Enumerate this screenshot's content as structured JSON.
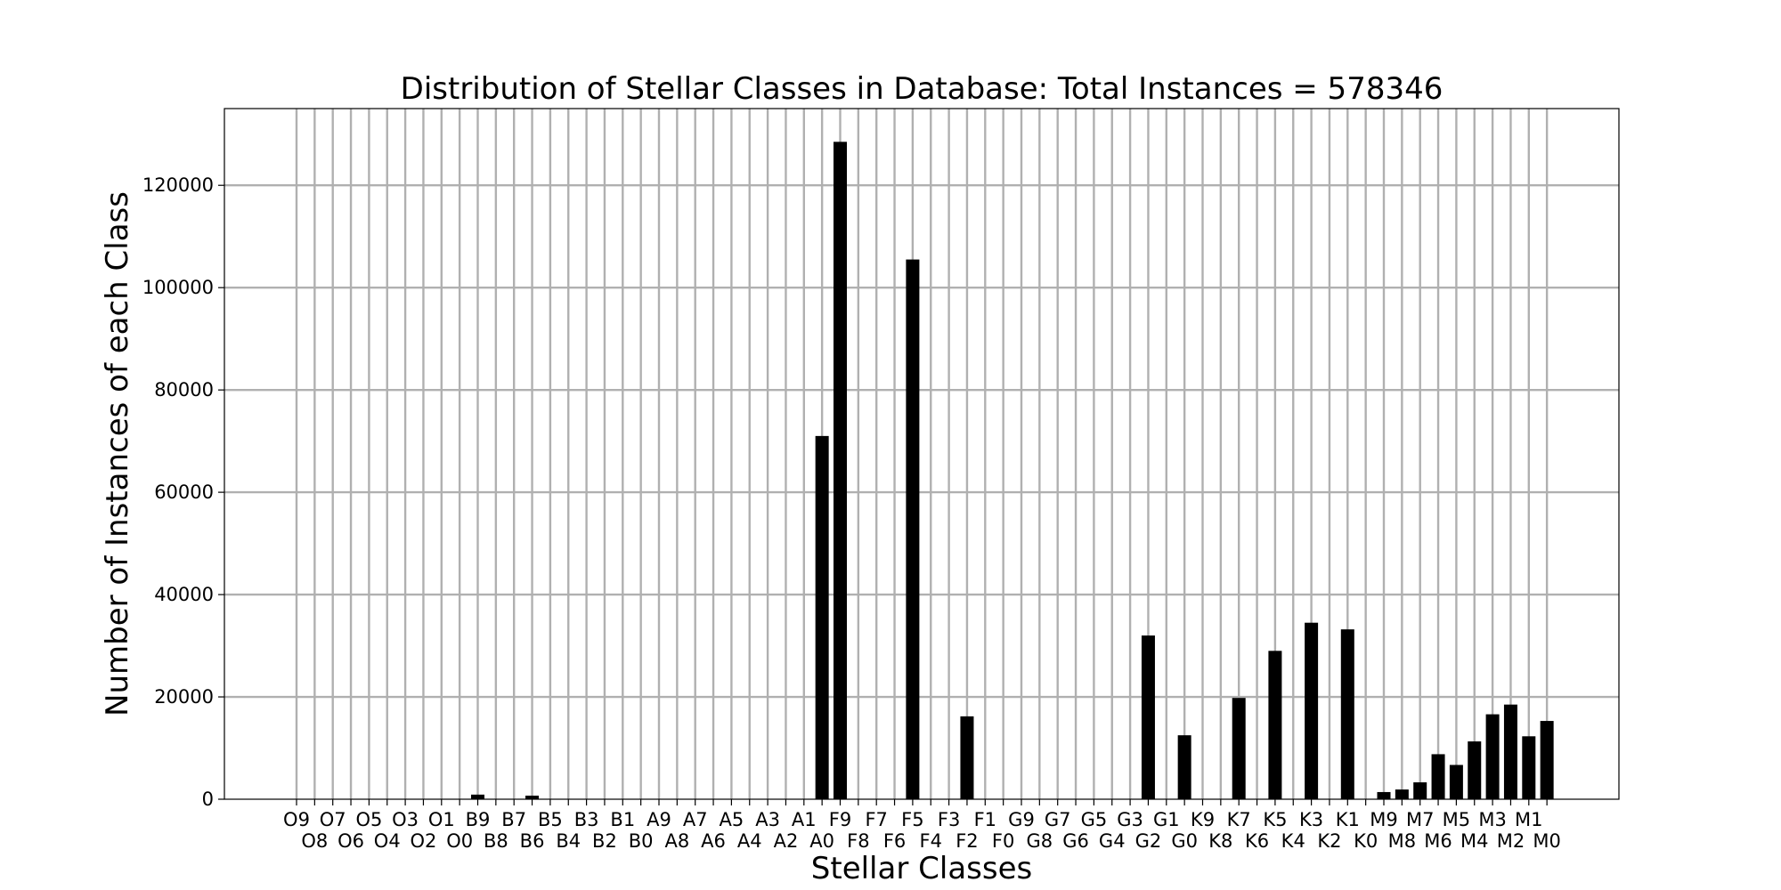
{
  "chart_data": {
    "type": "bar",
    "title": "Distribution of Stellar Classes in Database: Total Instances = 578346",
    "xlabel": "Stellar Classes",
    "ylabel": "Number of Instances of each Class",
    "ylim": [
      0,
      135000
    ],
    "yticks": [
      0,
      20000,
      40000,
      60000,
      80000,
      100000,
      120000
    ],
    "grid": true,
    "bar_color": "#000000",
    "grid_color": "#b0b0b0",
    "categories": [
      "O9",
      "O8",
      "O7",
      "O6",
      "O5",
      "O4",
      "O3",
      "O2",
      "O1",
      "O0",
      "B9",
      "B8",
      "B7",
      "B6",
      "B5",
      "B4",
      "B3",
      "B2",
      "B1",
      "B0",
      "A9",
      "A8",
      "A7",
      "A6",
      "A5",
      "A4",
      "A3",
      "A2",
      "A1",
      "A0",
      "F9",
      "F8",
      "F7",
      "F6",
      "F5",
      "F4",
      "F3",
      "F2",
      "F1",
      "F0",
      "G9",
      "G8",
      "G7",
      "G6",
      "G5",
      "G4",
      "G3",
      "G2",
      "G1",
      "G0",
      "K9",
      "K8",
      "K7",
      "K6",
      "K5",
      "K4",
      "K3",
      "K2",
      "K1",
      "K0",
      "M9",
      "M8",
      "M7",
      "M6",
      "M5",
      "M4",
      "M3",
      "M2",
      "M1",
      "M0"
    ],
    "values": [
      0,
      0,
      0,
      0,
      0,
      0,
      0,
      0,
      0,
      0,
      900,
      0,
      0,
      700,
      0,
      0,
      0,
      0,
      0,
      0,
      0,
      0,
      0,
      0,
      0,
      0,
      0,
      0,
      0,
      71000,
      128500,
      0,
      0,
      0,
      105500,
      0,
      0,
      16200,
      0,
      0,
      0,
      0,
      0,
      0,
      0,
      0,
      0,
      32000,
      0,
      12500,
      0,
      0,
      19800,
      0,
      29000,
      0,
      34500,
      0,
      33200,
      0,
      1400,
      1900,
      3300,
      8800,
      6700,
      11300,
      16600,
      18500,
      12300,
      15300
    ]
  }
}
